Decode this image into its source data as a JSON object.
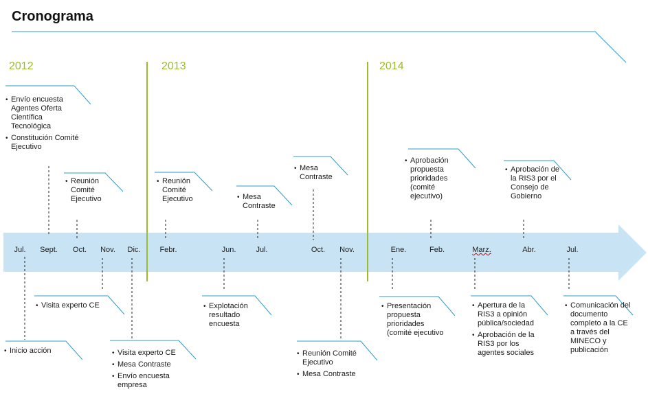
{
  "title": "Cronograma",
  "years": [
    "2012",
    "2013",
    "2014"
  ],
  "months": [
    "Jul.",
    "Sept.",
    "Oct.",
    "Nov.",
    "Dic.",
    "Febr.",
    "Jun.",
    "Jul.",
    "Oct.",
    "Nov.",
    "Ene.",
    "Feb.",
    "Marz.",
    "Abr.",
    "Jul."
  ],
  "notes": {
    "n2012_top": [
      "Envío encuesta Agentes Oferta Científica Tecnológica",
      "Constitución Comité Ejecutivo"
    ],
    "oct2012": [
      "Reunión Comité Ejecutivo"
    ],
    "feb2013": [
      "Reunión Comité Ejecutivo"
    ],
    "jul2013": [
      "Mesa Contraste"
    ],
    "oct2013": [
      "Mesa Contraste"
    ],
    "feb2014": [
      "Aprobación propuesta prioridades (comité ejecutivo)"
    ],
    "abr2014": [
      "Aprobación de la RIS3 por el Consejo de Gobierno"
    ],
    "nov2012": [
      "Visita experto CE"
    ],
    "jul2012": [
      "Inicio acción"
    ],
    "dic2012": [
      "Visita experto CE",
      "Mesa Contraste",
      "Envío encuesta empresa"
    ],
    "jun2013": [
      "Explotación resultado encuesta"
    ],
    "nov2013": [
      "Reunión Comité Ejecutivo",
      "Mesa Contraste"
    ],
    "ene2014": [
      "Presentación propuesta prioridades (comité ejecutivo"
    ],
    "marz2014": [
      "Apertura de la RIS3 a opinión pública/sociedad",
      "Aprobación de la RIS3 por los agentes sociales"
    ],
    "jul2014": [
      "Comunicación del documento completo a la CE a través del MINECO y publicación"
    ]
  }
}
